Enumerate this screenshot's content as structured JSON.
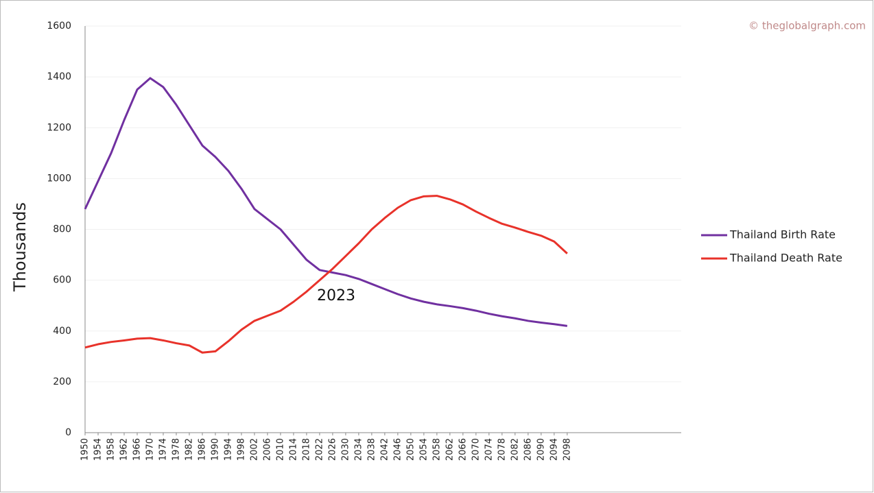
{
  "chart_data": {
    "type": "line",
    "watermark": "© theglobalgraph.com",
    "ylabel": "Thousands",
    "annotation": "2023",
    "x": [
      1950,
      1954,
      1958,
      1962,
      1966,
      1970,
      1974,
      1978,
      1982,
      1986,
      1990,
      1994,
      1998,
      2002,
      2006,
      2010,
      2014,
      2018,
      2022,
      2026,
      2030,
      2034,
      2038,
      2042,
      2046,
      2050,
      2054,
      2058,
      2062,
      2066,
      2070,
      2074,
      2078,
      2082,
      2086,
      2090,
      2094,
      2098
    ],
    "series": [
      {
        "name": "Thailand Birth Rate",
        "color": "#7030a0",
        "values": [
          880,
          990,
          1100,
          1230,
          1350,
          1395,
          1360,
          1290,
          1210,
          1130,
          1085,
          1030,
          960,
          880,
          840,
          800,
          740,
          680,
          640,
          630,
          620,
          605,
          585,
          565,
          545,
          528,
          515,
          505,
          498,
          490,
          480,
          468,
          458,
          450,
          440,
          433,
          427,
          420
        ]
      },
      {
        "name": "Thailand Death Rate",
        "color": "#e8322a",
        "values": [
          335,
          348,
          357,
          363,
          370,
          372,
          363,
          352,
          343,
          315,
          320,
          360,
          405,
          440,
          460,
          480,
          515,
          555,
          600,
          645,
          695,
          745,
          800,
          845,
          885,
          915,
          930,
          932,
          918,
          898,
          870,
          845,
          822,
          807,
          790,
          775,
          752,
          705
        ]
      }
    ],
    "xlim": [
      1950,
      2133
    ],
    "xticks": [
      1950,
      1954,
      1958,
      1962,
      1966,
      1970,
      1974,
      1978,
      1982,
      1986,
      1990,
      1994,
      1998,
      2002,
      2006,
      2010,
      2014,
      2018,
      2022,
      2026,
      2030,
      2034,
      2038,
      2042,
      2046,
      2050,
      2054,
      2058,
      2062,
      2066,
      2070,
      2074,
      2078,
      2082,
      2086,
      2090,
      2094,
      2098
    ],
    "ylim": [
      0,
      1600
    ],
    "yticks": [
      0,
      200,
      400,
      600,
      800,
      1000,
      1200,
      1400,
      1600
    ],
    "grid": true,
    "legend": "right"
  }
}
